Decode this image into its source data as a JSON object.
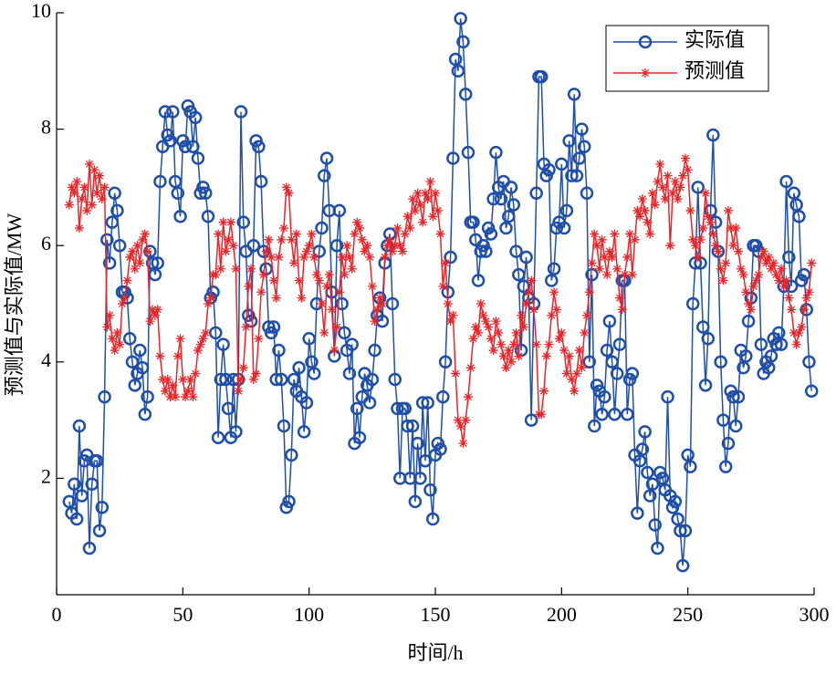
{
  "chart_data": {
    "type": "line",
    "xlabel": "时间/h",
    "ylabel": "预测值与实际值/MW",
    "xlim": [
      0,
      300
    ],
    "xticks": [
      0,
      50,
      100,
      150,
      200,
      250,
      300
    ],
    "ylim": [
      0,
      10
    ],
    "yticks": [
      2,
      4,
      6,
      8,
      10
    ],
    "legend": "upper right",
    "x": [
      5,
      6,
      7,
      8,
      9,
      10,
      11,
      12,
      13,
      14,
      15,
      16,
      17,
      18,
      19,
      20,
      21,
      22,
      23,
      24,
      25,
      26,
      27,
      28,
      29,
      30,
      31,
      32,
      33,
      34,
      35,
      36,
      37,
      38,
      39,
      40,
      41,
      42,
      43,
      44,
      45,
      46,
      47,
      48,
      49,
      50,
      51,
      52,
      53,
      54,
      55,
      56,
      57,
      58,
      59,
      60,
      61,
      62,
      63,
      64,
      65,
      66,
      67,
      68,
      69,
      70,
      71,
      72,
      73,
      74,
      75,
      76,
      77,
      78,
      79,
      80,
      81,
      82,
      83,
      84,
      85,
      86,
      87,
      88,
      89,
      90,
      91,
      92,
      93,
      94,
      95,
      96,
      97,
      98,
      99,
      100,
      101,
      102,
      103,
      104,
      105,
      106,
      107,
      108,
      109,
      110,
      111,
      112,
      113,
      114,
      115,
      116,
      117,
      118,
      119,
      120,
      121,
      122,
      123,
      124,
      125,
      126,
      127,
      128,
      129,
      130,
      131,
      132,
      133,
      134,
      135,
      136,
      137,
      138,
      139,
      140,
      141,
      142,
      143,
      144,
      145,
      146,
      147,
      148,
      149,
      150,
      151,
      152,
      153,
      154,
      155,
      156,
      157,
      158,
      159,
      160,
      161,
      162,
      163,
      164,
      165,
      166,
      167,
      168,
      169,
      170,
      171,
      172,
      173,
      174,
      175,
      176,
      177,
      178,
      179,
      180,
      181,
      182,
      183,
      184,
      185,
      186,
      187,
      188,
      189,
      190,
      191,
      192,
      193,
      194,
      195,
      196,
      197,
      198,
      199,
      200,
      201,
      202,
      203,
      204,
      205,
      206,
      207,
      208,
      209,
      210,
      211,
      212,
      213,
      214,
      215,
      216,
      217,
      218,
      219,
      220,
      221,
      222,
      223,
      224,
      225,
      226,
      227,
      228,
      229,
      230,
      231,
      232,
      233,
      234,
      235,
      236,
      237,
      238,
      239,
      240,
      241,
      242,
      243,
      244,
      245,
      246,
      247,
      248,
      249,
      250,
      251,
      252,
      253,
      254,
      255,
      256,
      257,
      258,
      259,
      260,
      261,
      262,
      263,
      264,
      265,
      266,
      267,
      268,
      269,
      270,
      271,
      272,
      273,
      274,
      275,
      276,
      277,
      278,
      279,
      280,
      281,
      282,
      283,
      284,
      285,
      286,
      287,
      288,
      289,
      290,
      291,
      292,
      293,
      294,
      295,
      296,
      297,
      298,
      299
    ],
    "series": [
      {
        "name": "实际值",
        "color": "#1f4fa8",
        "marker": "circle",
        "values": [
          1.6,
          1.4,
          1.9,
          1.3,
          2.9,
          1.7,
          2.3,
          2.4,
          0.8,
          1.9,
          2.3,
          2.3,
          1.1,
          1.5,
          3.4,
          6.1,
          5.7,
          6.4,
          6.9,
          6.6,
          6.0,
          5.2,
          5.2,
          5.1,
          4.4,
          4.0,
          3.6,
          3.8,
          4.2,
          3.9,
          3.1,
          3.4,
          5.9,
          5.7,
          5.5,
          5.7,
          7.1,
          7.7,
          8.3,
          7.9,
          7.8,
          8.3,
          7.1,
          6.9,
          6.5,
          7.8,
          7.7,
          8.4,
          8.3,
          7.7,
          8.2,
          7.5,
          6.9,
          7.0,
          6.9,
          6.5,
          5.1,
          5.2,
          4.5,
          2.7,
          3.7,
          4.3,
          3.7,
          3.2,
          2.7,
          3.7,
          2.8,
          3.7,
          8.3,
          6.4,
          5.9,
          4.8,
          4.7,
          6.0,
          7.8,
          7.7,
          7.1,
          5.9,
          5.6,
          4.6,
          4.5,
          4.6,
          3.7,
          4.2,
          3.7,
          2.9,
          1.5,
          1.6,
          2.4,
          3.7,
          3.5,
          3.9,
          3.4,
          2.8,
          3.3,
          4.4,
          4.0,
          3.8,
          5.0,
          5.9,
          6.3,
          7.2,
          7.5,
          6.6,
          5.2,
          4.1,
          6.0,
          6.6,
          5.0,
          4.5,
          4.2,
          3.8,
          4.3,
          2.6,
          3.2,
          2.7,
          3.4,
          3.8,
          3.6,
          3.3,
          3.7,
          4.2,
          4.8,
          5.1,
          4.7,
          5.7,
          6.0,
          6.2,
          5.0,
          3.7,
          3.2,
          2.0,
          3.2,
          3.2,
          2.9,
          2.0,
          2.9,
          1.6,
          2.6,
          2.0,
          3.3,
          2.3,
          3.3,
          1.8,
          1.3,
          2.4,
          2.6,
          2.5,
          3.4,
          4.0,
          5.2,
          5.8,
          7.5,
          9.2,
          9.0,
          9.9,
          9.5,
          8.6,
          7.6,
          6.4,
          6.4,
          6.1,
          5.4,
          5.9,
          6.0,
          5.9,
          6.3,
          6.2,
          6.8,
          7.6,
          7.0,
          6.8,
          7.1,
          6.3,
          6.5,
          7.0,
          6.7,
          5.9,
          5.5,
          4.2,
          5.3,
          5.8,
          5.1,
          3.0,
          5.0,
          6.9,
          8.9,
          8.9,
          7.4,
          7.2,
          7.3,
          5.4,
          5.6,
          6.3,
          6.4,
          7.4,
          6.3,
          6.6,
          7.8,
          7.2,
          8.6,
          7.2,
          7.5,
          8.0,
          7.7,
          6.9,
          4.0,
          5.5,
          2.9,
          3.6,
          3.5,
          3.1,
          3.4,
          4.2,
          4.7,
          4.0,
          3.1,
          3.8,
          4.3,
          5.4,
          5.4,
          3.1,
          3.7,
          3.8,
          2.4,
          1.4,
          2.3,
          2.5,
          2.8,
          2.1,
          1.7,
          1.9,
          1.2,
          0.8,
          2.1,
          2.0,
          1.8,
          3.4,
          1.7,
          1.5,
          1.6,
          1.3,
          1.1,
          0.5,
          1.1,
          2.4,
          2.2,
          5.0,
          5.7,
          7.0,
          5.7,
          4.6,
          3.6,
          4.4,
          6.6,
          7.9,
          6.4,
          5.9,
          4.0,
          3.0,
          2.2,
          2.6,
          3.5,
          3.4,
          2.9,
          3.4,
          4.2,
          3.9,
          4.1,
          4.7,
          5.1,
          6.0,
          6.0,
          5.9,
          4.3,
          3.8,
          4.0,
          3.9,
          4.1,
          4.4,
          4.3,
          4.5,
          4.3,
          5.3,
          7.1,
          5.8,
          5.3,
          6.9,
          6.7,
          6.5,
          5.4,
          5.5,
          4.9,
          4.0,
          3.5
        ]
      },
      {
        "name": "预测值",
        "color": "#e8262a",
        "marker": "asterisk",
        "values": [
          6.7,
          7.0,
          6.9,
          7.1,
          6.3,
          6.8,
          7.0,
          6.6,
          7.4,
          6.7,
          7.3,
          6.9,
          7.2,
          6.8,
          7.0,
          4.6,
          4.8,
          4.4,
          4.2,
          4.5,
          4.3,
          5.0,
          5.1,
          5.4,
          5.8,
          5.9,
          5.6,
          6.0,
          5.7,
          6.1,
          6.2,
          5.9,
          4.7,
          4.9,
          4.8,
          4.9,
          4.1,
          3.7,
          3.5,
          3.7,
          3.4,
          3.6,
          3.4,
          4.1,
          4.4,
          3.7,
          3.4,
          3.5,
          3.7,
          3.4,
          3.8,
          4.2,
          4.3,
          4.4,
          4.5,
          5.0,
          5.1,
          5.5,
          5.5,
          6.2,
          5.6,
          6.4,
          5.9,
          6.1,
          6.4,
          6.0,
          5.6,
          3.5,
          3.7,
          3.9,
          4.6,
          5.3,
          5.6,
          3.7,
          3.8,
          4.4,
          5.2,
          5.5,
          5.9,
          6.1,
          5.8,
          5.4,
          5.1,
          5.8,
          6.1,
          6.3,
          7.0,
          6.9,
          6.1,
          5.7,
          6.2,
          5.4,
          5.1,
          5.8,
          5.9,
          6.0,
          6.2,
          5.8,
          5.5,
          5.4,
          5.0,
          4.5,
          5.3,
          5.5,
          4.9,
          4.2,
          4.6,
          5.2,
          5.8,
          5.5,
          6.0,
          5.8,
          5.6,
          6.2,
          6.4,
          6.3,
          6.1,
          5.9,
          6.0,
          5.8,
          5.3,
          4.7,
          4.9,
          5.1,
          5.0,
          5.8,
          6.0,
          6.1,
          5.9,
          6.0,
          6.3,
          6.0,
          5.9,
          6.2,
          6.5,
          6.3,
          6.8,
          6.6,
          6.9,
          6.7,
          6.4,
          6.9,
          6.8,
          7.1,
          6.5,
          6.9,
          6.6,
          6.2,
          5.3,
          5.7,
          5.0,
          4.7,
          4.8,
          3.8,
          3.0,
          2.9,
          2.6,
          3.0,
          3.4,
          3.9,
          4.4,
          4.6,
          4.5,
          5.0,
          4.8,
          4.7,
          4.6,
          4.4,
          4.2,
          4.7,
          4.5,
          4.3,
          4.1,
          3.9,
          4.2,
          4.0,
          4.3,
          4.5,
          4.1,
          4.8,
          4.6,
          5.0,
          5.2,
          5.4,
          4.9,
          4.3,
          3.1,
          3.1,
          3.5,
          4.1,
          4.3,
          4.8,
          5.2,
          4.9,
          4.4,
          4.5,
          4.2,
          3.8,
          4.1,
          3.7,
          3.5,
          3.8,
          4.2,
          3.9,
          4.5,
          4.8,
          5.2,
          5.7,
          6.2,
          6.0,
          5.6,
          6.1,
          5.8,
          5.5,
          5.9,
          5.8,
          6.2,
          5.6,
          5.1,
          4.9,
          5.5,
          5.8,
          6.2,
          5.5,
          6.1,
          6.6,
          6.5,
          6.8,
          6.6,
          6.4,
          6.2,
          6.9,
          6.7,
          7.1,
          7.4,
          7.0,
          6.8,
          7.2,
          6.0,
          6.9,
          7.1,
          6.8,
          7.0,
          7.2,
          7.5,
          7.3,
          6.6,
          6.1,
          6.0,
          5.8,
          6.1,
          6.3,
          6.9,
          6.5,
          6.4,
          6.2,
          6.0,
          5.9,
          5.6,
          5.4,
          5.7,
          6.6,
          6.3,
          6.0,
          6.3,
          5.9,
          5.6,
          5.5,
          5.2,
          5.0,
          4.9,
          5.3,
          5.4,
          5.5,
          5.8,
          5.9,
          5.7,
          5.8,
          5.6,
          5.7,
          5.5,
          5.4,
          5.6,
          5.3,
          5.4,
          5.1,
          4.9,
          4.5,
          4.3,
          4.5,
          4.6,
          4.9,
          5.1,
          5.2,
          5.7
        ]
      }
    ]
  }
}
